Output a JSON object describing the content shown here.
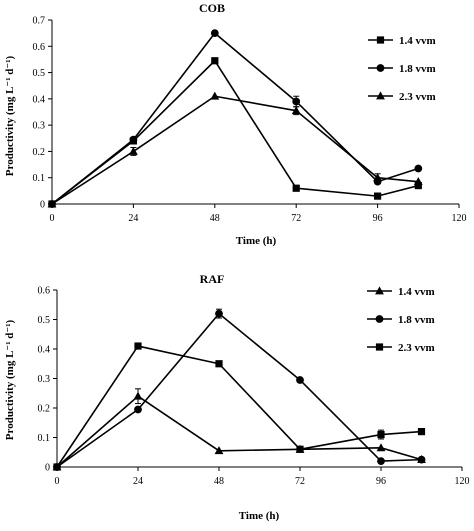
{
  "chart_data": [
    {
      "type": "line",
      "title": "COB",
      "xlabel": "Time (h)",
      "ylabel": "Productivity (mg L⁻¹ d⁻¹)",
      "xlim": [
        0,
        120
      ],
      "ylim": [
        0,
        0.7
      ],
      "xticks": [
        0,
        24,
        48,
        72,
        96,
        120
      ],
      "yticks": [
        0,
        0.1,
        0.2,
        0.3,
        0.4,
        0.5,
        0.6,
        0.7
      ],
      "x_tick_labels": [
        "0",
        "24",
        "48",
        "72",
        "96",
        "120"
      ],
      "y_tick_labels": [
        "0",
        "0.1",
        "0.2",
        "0.3",
        "0.4",
        "0.5",
        "0.6",
        "0.7"
      ],
      "grid": false,
      "legend_position": "top-right",
      "series": [
        {
          "name": "1.4 vvm",
          "marker": "square",
          "x": [
            0,
            24,
            48,
            72,
            96,
            108
          ],
          "y": [
            0,
            0.24,
            0.545,
            0.06,
            0.03,
            0.07
          ],
          "error": [
            0,
            0,
            0,
            0,
            0,
            0
          ]
        },
        {
          "name": "1.8 vvm",
          "marker": "circle",
          "x": [
            0,
            24,
            48,
            72,
            96,
            108
          ],
          "y": [
            0,
            0.245,
            0.65,
            0.39,
            0.085,
            0.135
          ],
          "error": [
            0,
            0,
            0,
            0.02,
            0,
            0
          ]
        },
        {
          "name": "2.3 vvm",
          "marker": "triangle",
          "x": [
            0,
            24,
            48,
            72,
            96,
            108
          ],
          "y": [
            0,
            0.2,
            0.41,
            0.355,
            0.1,
            0.085
          ],
          "error": [
            0,
            0.015,
            0,
            0.015,
            0.015,
            0
          ]
        }
      ]
    },
    {
      "type": "line",
      "title": "RAF",
      "xlabel": "Time (h)",
      "ylabel": "Productivity (mg L⁻¹ d⁻¹)",
      "xlim": [
        0,
        120
      ],
      "ylim": [
        0,
        0.6
      ],
      "xticks": [
        0,
        24,
        48,
        72,
        96,
        120
      ],
      "yticks": [
        0,
        0.1,
        0.2,
        0.3,
        0.4,
        0.5,
        0.6
      ],
      "x_tick_labels": [
        "0",
        "24",
        "48",
        "72",
        "96",
        "120"
      ],
      "y_tick_labels": [
        "0",
        "0.1",
        "0.2",
        "0.3",
        "0.4",
        "0.5",
        "0.6"
      ],
      "grid": false,
      "legend_position": "top-right",
      "series": [
        {
          "name": "1.4 vvm",
          "marker": "triangle",
          "x": [
            0,
            24,
            48,
            72,
            96,
            108
          ],
          "y": [
            0,
            0.24,
            0.055,
            0.06,
            0.065,
            0.025
          ],
          "error": [
            0,
            0.025,
            0,
            0,
            0,
            0
          ]
        },
        {
          "name": "1.8 vvm",
          "marker": "circle",
          "x": [
            0,
            24,
            48,
            72,
            96,
            108
          ],
          "y": [
            0,
            0.195,
            0.52,
            0.295,
            0.02,
            0.025
          ],
          "error": [
            0,
            0,
            0.015,
            0,
            0,
            0
          ]
        },
        {
          "name": "2.3 vvm",
          "marker": "square",
          "x": [
            0,
            24,
            48,
            72,
            96,
            108
          ],
          "y": [
            0,
            0.41,
            0.35,
            0.06,
            0.11,
            0.12
          ],
          "error": [
            0,
            0.01,
            0,
            0,
            0.015,
            0
          ]
        }
      ]
    }
  ]
}
